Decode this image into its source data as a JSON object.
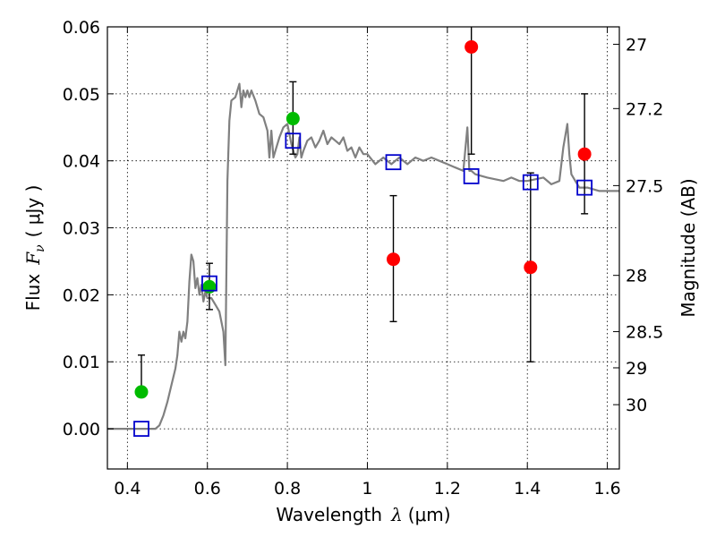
{
  "chart_data": {
    "type": "scatter",
    "xlabel": "Wavelength",
    "xlabel_symbol": "λ",
    "xlabel_unit": "(μm)",
    "ylabel": "Flux",
    "ylabel_symbol": "F",
    "ylabel_subscript": "ν",
    "ylabel_unit": "( μJy )",
    "ylabel_right": "Magnitude (AB)",
    "xlim": [
      0.35,
      1.63
    ],
    "ylim": [
      -0.006,
      0.06
    ],
    "grid": true,
    "x_ticks": [
      {
        "value": 0.4,
        "label": "0.4"
      },
      {
        "value": 0.6,
        "label": "0.6"
      },
      {
        "value": 0.8,
        "label": "0.8"
      },
      {
        "value": 1.0,
        "label": "1"
      },
      {
        "value": 1.2,
        "label": "1.2"
      },
      {
        "value": 1.4,
        "label": "1.4"
      },
      {
        "value": 1.6,
        "label": "1.6"
      }
    ],
    "y_ticks": [
      {
        "value": 0.0,
        "label": "0.00"
      },
      {
        "value": 0.01,
        "label": "0.01"
      },
      {
        "value": 0.02,
        "label": "0.02"
      },
      {
        "value": 0.03,
        "label": "0.03"
      },
      {
        "value": 0.04,
        "label": "0.04"
      },
      {
        "value": 0.05,
        "label": "0.05"
      },
      {
        "value": 0.06,
        "label": "0.06"
      }
    ],
    "right_ticks": [
      {
        "flux": 0.0574,
        "label": "27"
      },
      {
        "flux": 0.0478,
        "label": "27.2"
      },
      {
        "flux": 0.0363,
        "label": "27.5"
      },
      {
        "flux": 0.0229,
        "label": "28"
      },
      {
        "flux": 0.0145,
        "label": "28.5"
      },
      {
        "flux": 0.0091,
        "label": "29"
      },
      {
        "flux": 0.0036,
        "label": "30"
      }
    ],
    "colors": {
      "model": "#808080",
      "observed_green": "#00bb00",
      "observed_red": "#ff0000",
      "model_photometry": "#0000cc",
      "errorbar": "#000000"
    },
    "series": [
      {
        "kind": "model_spectrum",
        "x": [
          0.35,
          0.4,
          0.47,
          0.48,
          0.49,
          0.5,
          0.51,
          0.52,
          0.525,
          0.53,
          0.535,
          0.54,
          0.545,
          0.55,
          0.555,
          0.56,
          0.565,
          0.57,
          0.575,
          0.58,
          0.585,
          0.59,
          0.595,
          0.6,
          0.61,
          0.62,
          0.63,
          0.64,
          0.645,
          0.65,
          0.655,
          0.66,
          0.67,
          0.68,
          0.685,
          0.69,
          0.695,
          0.7,
          0.705,
          0.71,
          0.72,
          0.73,
          0.74,
          0.75,
          0.755,
          0.76,
          0.765,
          0.77,
          0.78,
          0.79,
          0.8,
          0.81,
          0.82,
          0.825,
          0.83,
          0.835,
          0.84,
          0.85,
          0.86,
          0.87,
          0.88,
          0.89,
          0.9,
          0.91,
          0.92,
          0.93,
          0.94,
          0.95,
          0.96,
          0.97,
          0.98,
          0.99,
          1.0,
          1.02,
          1.04,
          1.06,
          1.08,
          1.1,
          1.12,
          1.14,
          1.16,
          1.18,
          1.2,
          1.22,
          1.24,
          1.25,
          1.255,
          1.26,
          1.27,
          1.3,
          1.34,
          1.36,
          1.38,
          1.4,
          1.44,
          1.46,
          1.48,
          1.49,
          1.5,
          1.505,
          1.51,
          1.52,
          1.53,
          1.55,
          1.58,
          1.6,
          1.63
        ],
        "y": [
          0.0,
          0.0,
          0.0,
          0.0005,
          0.002,
          0.004,
          0.0065,
          0.009,
          0.011,
          0.0145,
          0.013,
          0.0145,
          0.0135,
          0.016,
          0.022,
          0.026,
          0.025,
          0.021,
          0.0225,
          0.02,
          0.0215,
          0.019,
          0.0205,
          0.0195,
          0.0195,
          0.0185,
          0.0175,
          0.0145,
          0.0095,
          0.037,
          0.046,
          0.049,
          0.0495,
          0.0515,
          0.048,
          0.0505,
          0.0495,
          0.0505,
          0.0495,
          0.0505,
          0.049,
          0.047,
          0.0465,
          0.0445,
          0.0405,
          0.0445,
          0.0405,
          0.0415,
          0.0435,
          0.045,
          0.0455,
          0.0425,
          0.0405,
          0.041,
          0.0435,
          0.0405,
          0.0415,
          0.043,
          0.0435,
          0.042,
          0.043,
          0.0445,
          0.0425,
          0.0435,
          0.043,
          0.0425,
          0.0435,
          0.0415,
          0.042,
          0.0405,
          0.042,
          0.041,
          0.041,
          0.0395,
          0.0405,
          0.0395,
          0.0405,
          0.0395,
          0.0405,
          0.04,
          0.0405,
          0.04,
          0.0395,
          0.039,
          0.0385,
          0.045,
          0.0385,
          0.0385,
          0.038,
          0.0375,
          0.037,
          0.0375,
          0.037,
          0.037,
          0.0375,
          0.0365,
          0.037,
          0.042,
          0.0455,
          0.041,
          0.038,
          0.037,
          0.036,
          0.036,
          0.0355,
          0.0355,
          0.0355
        ]
      },
      {
        "kind": "observed",
        "color": "green",
        "points": [
          {
            "x": 0.435,
            "y": 0.0055,
            "err_low": 0.0055,
            "err_high": 0.011
          },
          {
            "x": 0.605,
            "y": 0.0212,
            "err_low": 0.0178,
            "err_high": 0.0247
          },
          {
            "x": 0.814,
            "y": 0.0463,
            "err_low": 0.041,
            "err_high": 0.0518
          }
        ]
      },
      {
        "kind": "observed",
        "color": "red",
        "points": [
          {
            "x": 1.065,
            "y": 0.0253,
            "err_low": 0.016,
            "err_high": 0.0348
          },
          {
            "x": 1.26,
            "y": 0.057,
            "err_low": 0.041,
            "err_high": 0.0605
          },
          {
            "x": 1.408,
            "y": 0.0241,
            "err_low": 0.01,
            "err_high": 0.0382
          },
          {
            "x": 1.543,
            "y": 0.041,
            "err_low": 0.0321,
            "err_high": 0.05
          }
        ]
      },
      {
        "kind": "model_photometry",
        "points": [
          {
            "x": 0.435,
            "y": 0.0
          },
          {
            "x": 0.605,
            "y": 0.0217
          },
          {
            "x": 0.814,
            "y": 0.043
          },
          {
            "x": 1.065,
            "y": 0.0398
          },
          {
            "x": 1.26,
            "y": 0.0377
          },
          {
            "x": 1.408,
            "y": 0.0368
          },
          {
            "x": 1.543,
            "y": 0.036
          }
        ]
      }
    ]
  }
}
